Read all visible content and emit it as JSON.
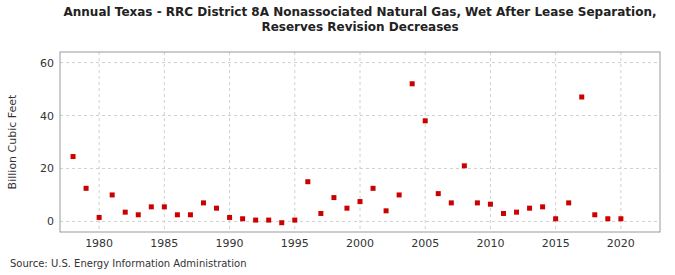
{
  "chart_data": {
    "type": "scatter",
    "title": "Annual Texas - RRC District 8A Nonassociated Natural Gas, Wet After Lease Separation,\nReserves Revision Decreases",
    "y_label": "Billion Cubic Feet",
    "annotation": "Source: U.S. Energy Information Administration",
    "x": [
      1978,
      1979,
      1980,
      1981,
      1982,
      1983,
      1984,
      1985,
      1986,
      1987,
      1988,
      1989,
      1990,
      1991,
      1992,
      1993,
      1994,
      1995,
      1996,
      1997,
      1998,
      1999,
      2000,
      2001,
      2002,
      2003,
      2004,
      2005,
      2006,
      2007,
      2008,
      2009,
      2010,
      2011,
      2012,
      2013,
      2014,
      2015,
      2016,
      2017,
      2018,
      2019,
      2020
    ],
    "values": [
      24.5,
      12.5,
      1.5,
      10.0,
      3.5,
      2.5,
      5.5,
      5.5,
      2.5,
      2.5,
      7.0,
      5.0,
      1.5,
      1.0,
      0.5,
      0.5,
      -0.5,
      0.5,
      15.0,
      3.0,
      9.0,
      5.0,
      7.5,
      12.5,
      4.0,
      10.0,
      52.0,
      38.0,
      10.5,
      7.0,
      21.0,
      7.0,
      6.5,
      3.0,
      3.5,
      5.0,
      5.5,
      1.0,
      7.0,
      47.0,
      2.5,
      1.0,
      1.0
    ],
    "color": "#cc0000",
    "marker": "square",
    "xlim": [
      1977,
      2023
    ],
    "ylim": [
      -4,
      64
    ],
    "xticks": [
      1980,
      1985,
      1990,
      1995,
      2000,
      2005,
      2010,
      2015,
      2020
    ],
    "yticks": [
      0,
      20,
      40,
      60
    ],
    "grid": true
  }
}
